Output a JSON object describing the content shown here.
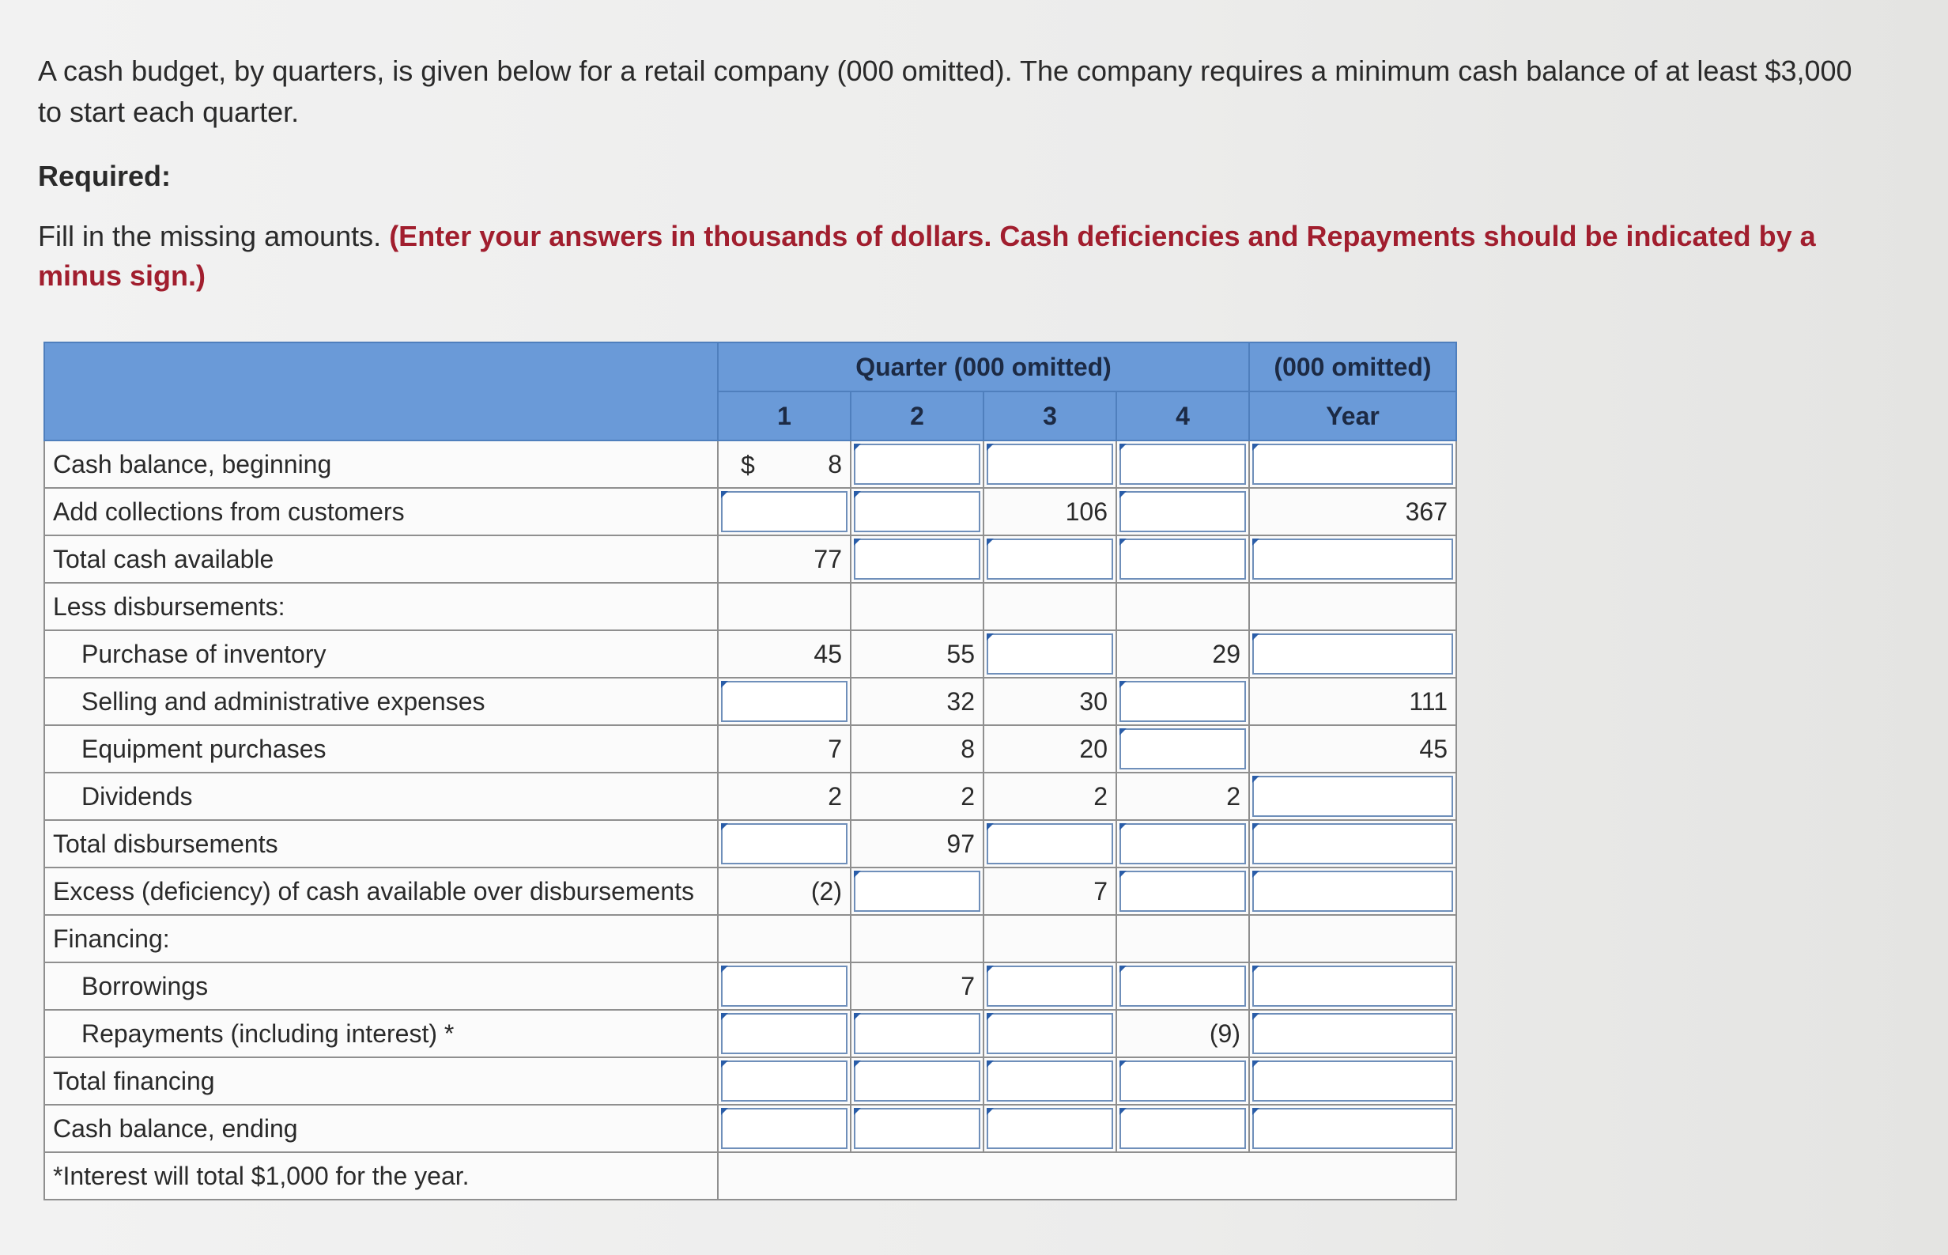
{
  "problem": {
    "intro": "A cash budget, by quarters, is given below for a retail company (000 omitted). The company requires a minimum cash balance of at least $3,000 to start each quarter.",
    "required_label": "Required:",
    "instruction_plain": "Fill in the missing amounts.",
    "instruction_emphasis": "(Enter your answers in thousands of dollars. Cash deficiencies and Repayments should be indicated by a minus sign.)"
  },
  "table": {
    "quarter_header": "Quarter (000 omitted)",
    "year_header": "(000 omitted)",
    "col_labels": [
      "1",
      "2",
      "3",
      "4",
      "Year"
    ],
    "currency_symbol": "$",
    "rows": [
      {
        "label": "Cash balance, beginning",
        "q1": "8",
        "q2": "",
        "q3": "",
        "q4": "",
        "year": ""
      },
      {
        "label": "Add collections from customers",
        "q1": "",
        "q2": "",
        "q3": "106",
        "q4": "",
        "year": "367"
      },
      {
        "label": "Total cash available",
        "q1": "77",
        "q2": "",
        "q3": "",
        "q4": "",
        "year": ""
      },
      {
        "label": "Less disbursements:",
        "q1": "",
        "q2": "",
        "q3": "",
        "q4": "",
        "year": ""
      },
      {
        "label": "Purchase of inventory",
        "q1": "45",
        "q2": "55",
        "q3": "",
        "q4": "29",
        "year": ""
      },
      {
        "label": "Selling and administrative expenses",
        "q1": "",
        "q2": "32",
        "q3": "30",
        "q4": "",
        "year": "111"
      },
      {
        "label": "Equipment purchases",
        "q1": "7",
        "q2": "8",
        "q3": "20",
        "q4": "",
        "year": "45"
      },
      {
        "label": "Dividends",
        "q1": "2",
        "q2": "2",
        "q3": "2",
        "q4": "2",
        "year": ""
      },
      {
        "label": "Total disbursements",
        "q1": "",
        "q2": "97",
        "q3": "",
        "q4": "",
        "year": ""
      },
      {
        "label": "Excess (deficiency) of cash available over disbursements",
        "q1": "(2)",
        "q2": "",
        "q3": "7",
        "q4": "",
        "year": ""
      },
      {
        "label": "Financing:",
        "q1": "",
        "q2": "",
        "q3": "",
        "q4": "",
        "year": ""
      },
      {
        "label": "Borrowings",
        "q1": "",
        "q2": "7",
        "q3": "",
        "q4": "",
        "year": ""
      },
      {
        "label": "Repayments (including interest) *",
        "q1": "",
        "q2": "",
        "q3": "",
        "q4": "(9)",
        "year": ""
      },
      {
        "label": "Total financing",
        "q1": "",
        "q2": "",
        "q3": "",
        "q4": "",
        "year": ""
      },
      {
        "label": "Cash balance, ending",
        "q1": "",
        "q2": "",
        "q3": "",
        "q4": "",
        "year": ""
      }
    ],
    "footnote": "*Interest will total $1,000 for the year."
  }
}
